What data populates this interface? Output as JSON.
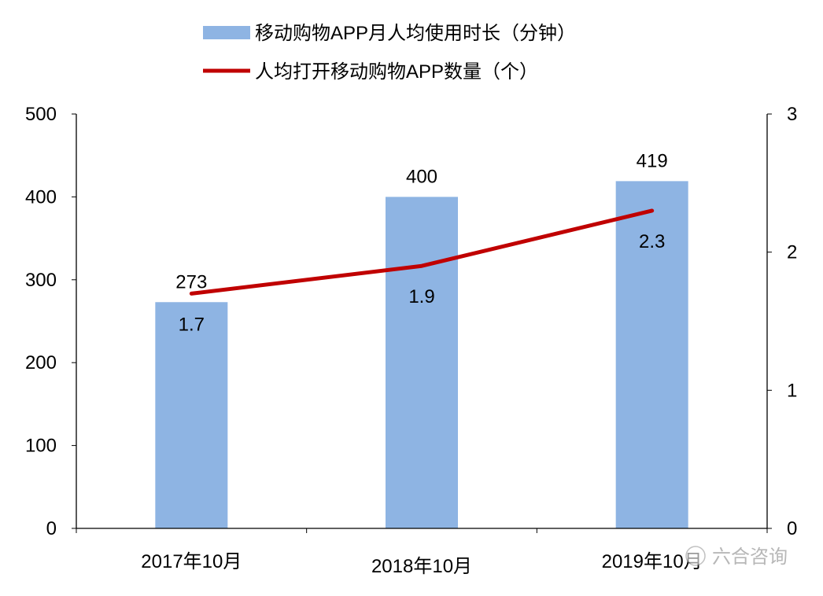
{
  "chart_data": {
    "type": "bar+line",
    "categories": [
      "2017年10月",
      "2018年10月",
      "2019年10月"
    ],
    "series": [
      {
        "name": "移动购物APP月人均使用时长（分钟）",
        "type": "bar",
        "axis": "left",
        "values": [
          273,
          400,
          419
        ],
        "color": "#8EB4E3"
      },
      {
        "name": "人均打开移动购物APP数量（个）",
        "type": "line",
        "axis": "right",
        "values": [
          1.7,
          1.9,
          2.3
        ],
        "color": "#C00000"
      }
    ],
    "left_axis": {
      "ylim": [
        0,
        500
      ],
      "ticks": [
        0,
        100,
        200,
        300,
        400,
        500
      ]
    },
    "right_axis": {
      "ylim": [
        0,
        3
      ],
      "ticks": [
        0,
        1,
        2,
        3
      ]
    },
    "grid": false,
    "legend_position": "top"
  },
  "watermark": "六合咨询"
}
